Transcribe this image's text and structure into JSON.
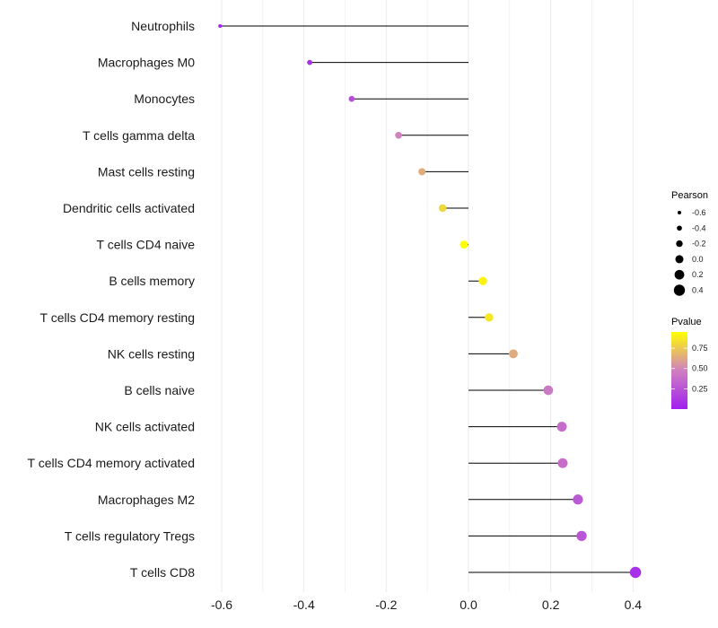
{
  "chart_data": {
    "type": "lollipop",
    "title": "",
    "xlabel": "",
    "ylabel": "",
    "xlim": [
      -0.62,
      0.42
    ],
    "x_ticks": [
      -0.6,
      -0.4,
      -0.2,
      0.0,
      0.2,
      0.4
    ],
    "x_tick_labels": [
      "-0.6",
      "-0.4",
      "-0.2",
      "0.0",
      "0.2",
      "0.4"
    ],
    "grid": "vertical major and minor",
    "categories": [
      "Neutrophils",
      "Macrophages M0",
      "Monocytes",
      "T cells gamma delta",
      "Mast cells resting",
      "Dendritic cells activated",
      "T cells CD4 naive",
      "B cells memory",
      "T cells CD4 memory resting",
      "NK cells resting",
      "B cells naive",
      "NK cells activated",
      "T cells CD4 memory activated",
      "Macrophages M2",
      "T cells regulatory  Tregs",
      "T cells CD8"
    ],
    "pearson": [
      -0.604,
      -0.386,
      -0.284,
      -0.17,
      -0.113,
      -0.063,
      -0.011,
      0.035,
      0.05,
      0.109,
      0.194,
      0.227,
      0.229,
      0.266,
      0.275,
      0.406
    ],
    "pvalue": [
      0.02,
      0.08,
      0.22,
      0.48,
      0.64,
      0.8,
      0.97,
      0.9,
      0.86,
      0.64,
      0.44,
      0.38,
      0.38,
      0.28,
      0.26,
      0.08
    ],
    "legend_size": {
      "title": "Pearson",
      "labels": [
        "-0.6",
        "-0.4",
        "-0.2",
        "0.0",
        "0.2",
        "0.4"
      ],
      "values": [
        -0.6,
        -0.4,
        -0.2,
        0.0,
        0.2,
        0.4
      ],
      "placement": "right"
    },
    "legend_color": {
      "title": "Pvalue",
      "labels": [
        "0.75",
        "0.50",
        "0.25"
      ],
      "values": [
        0.75,
        0.5,
        0.25
      ],
      "range": [
        0,
        0.95
      ],
      "low_color": "#A020F0",
      "mid_color": "#D080C0",
      "high_color": "#FFFF00",
      "placement": "right"
    }
  }
}
